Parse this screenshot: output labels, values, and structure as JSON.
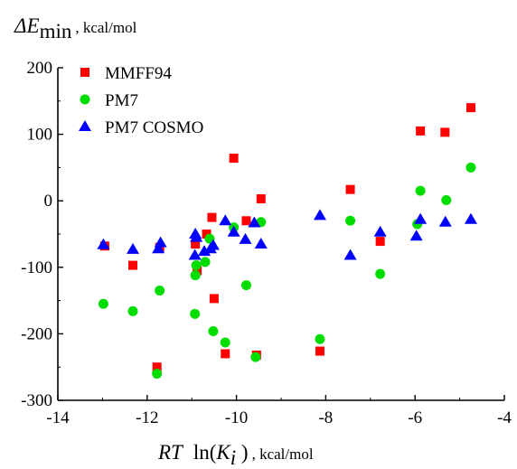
{
  "chart_data": {
    "type": "scatter",
    "title": "",
    "ylabel": {
      "symbol": "ΔE",
      "subscript": "min",
      "unit": ", kcal/mol"
    },
    "xlabel": {
      "symbol_rt": "RT",
      "func": "ln(",
      "var": "K",
      "var_sub": "i",
      "close": " )",
      "unit": ", kcal/mol"
    },
    "xlim": [
      -14,
      -4
    ],
    "ylim": [
      -300,
      200
    ],
    "xticks": [
      -14,
      -12,
      -10,
      -8,
      -6,
      -4
    ],
    "yticks": [
      -300,
      -200,
      -100,
      0,
      100,
      200
    ],
    "xtick_labels": [
      "-14",
      "-12",
      "-10",
      "-8",
      "-6",
      "-4"
    ],
    "ytick_labels": [
      "-300",
      "-200",
      "-100",
      "0",
      "100",
      "200"
    ],
    "grid": false,
    "legend_position": "top-left",
    "series": [
      {
        "name": "MMFF94",
        "marker": "square",
        "color": "#ff0000",
        "points": [
          [
            -12.95,
            -68
          ],
          [
            -12.32,
            -97
          ],
          [
            -11.78,
            -250
          ],
          [
            -11.72,
            -70
          ],
          [
            -10.92,
            -65
          ],
          [
            -10.88,
            -105
          ],
          [
            -10.67,
            -50
          ],
          [
            -10.55,
            -25
          ],
          [
            -10.5,
            -147
          ],
          [
            -10.25,
            -230
          ],
          [
            -10.06,
            64
          ],
          [
            -9.78,
            -30
          ],
          [
            -9.55,
            -232
          ],
          [
            -9.45,
            3
          ],
          [
            -8.13,
            -226
          ],
          [
            -7.45,
            17
          ],
          [
            -6.78,
            -61
          ],
          [
            -5.88,
            105
          ],
          [
            -5.33,
            103
          ],
          [
            -4.75,
            140
          ]
        ]
      },
      {
        "name": "PM7",
        "marker": "circle",
        "color": "#00dd00",
        "points": [
          [
            -12.98,
            -155
          ],
          [
            -12.32,
            -166
          ],
          [
            -11.78,
            -260
          ],
          [
            -11.72,
            -135
          ],
          [
            -10.93,
            -170
          ],
          [
            -10.92,
            -112
          ],
          [
            -10.9,
            -97
          ],
          [
            -10.7,
            -92
          ],
          [
            -10.6,
            -57
          ],
          [
            -10.52,
            -196
          ],
          [
            -10.25,
            -213
          ],
          [
            -10.06,
            -40
          ],
          [
            -9.78,
            -127
          ],
          [
            -9.57,
            -235
          ],
          [
            -9.45,
            -32
          ],
          [
            -8.13,
            -208
          ],
          [
            -7.45,
            -30
          ],
          [
            -6.78,
            -110
          ],
          [
            -5.95,
            -35
          ],
          [
            -5.88,
            15
          ],
          [
            -5.3,
            1
          ],
          [
            -4.75,
            50
          ]
        ]
      },
      {
        "name": "PM7 COSMO",
        "marker": "triangle",
        "color": "#0000ff",
        "points": [
          [
            -12.98,
            -66
          ],
          [
            -12.32,
            -73
          ],
          [
            -11.75,
            -72
          ],
          [
            -11.7,
            -63
          ],
          [
            -10.93,
            -82
          ],
          [
            -10.92,
            -50
          ],
          [
            -10.9,
            -55
          ],
          [
            -10.72,
            -76
          ],
          [
            -10.58,
            -72
          ],
          [
            -10.52,
            -67
          ],
          [
            -10.25,
            -30
          ],
          [
            -10.06,
            -47
          ],
          [
            -9.8,
            -58
          ],
          [
            -9.6,
            -33
          ],
          [
            -9.45,
            -65
          ],
          [
            -8.13,
            -22
          ],
          [
            -7.45,
            -82
          ],
          [
            -6.78,
            -47
          ],
          [
            -5.97,
            -53
          ],
          [
            -5.88,
            -28
          ],
          [
            -5.32,
            -32
          ],
          [
            -4.75,
            -28
          ]
        ]
      }
    ]
  }
}
